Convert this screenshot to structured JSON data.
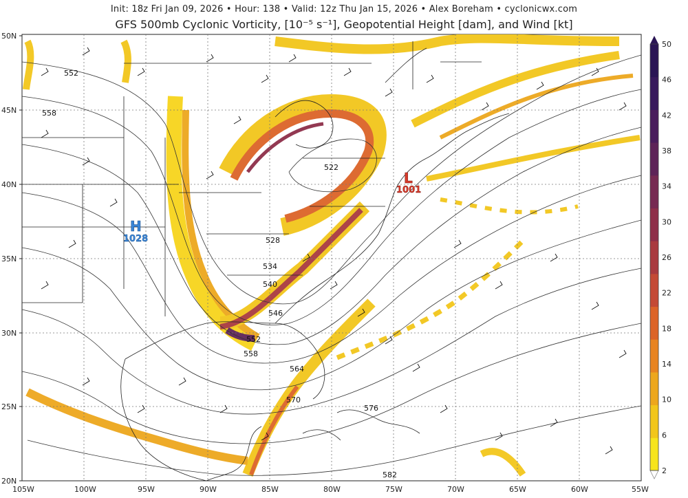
{
  "header": {
    "line1": "Init: 18z Fri Jan 09, 2026  •  Hour: 138  •  Valid: 12z Thu Jan 15, 2026  •  Alex Boreham  •  cyclonicwx.com",
    "line2": "GFS 500mb Cyclonic Vorticity, [10⁻⁵ s⁻¹], Geopotential Height [dam], and Wind [kt]"
  },
  "lat_labels": [
    "50N",
    "45N",
    "40N",
    "35N",
    "30N",
    "25N",
    "20N"
  ],
  "lon_labels": [
    "105W",
    "100W",
    "95W",
    "90W",
    "85W",
    "80W",
    "75W",
    "70W",
    "65W",
    "60W",
    "55W"
  ],
  "height_contour_labels": [
    "552",
    "558",
    "522",
    "528",
    "534",
    "540",
    "546",
    "552",
    "558",
    "564",
    "570",
    "576",
    "582"
  ],
  "pressure_centers": [
    {
      "type": "H",
      "value": "1028",
      "color": "#3a86d8"
    },
    {
      "type": "L",
      "value": "1001",
      "color": "#d83a2a"
    }
  ],
  "colorbar": {
    "labels": [
      "50",
      "46",
      "42",
      "38",
      "34",
      "30",
      "26",
      "22",
      "18",
      "14",
      "10",
      "6",
      "2"
    ],
    "colors": [
      "#f7e41c",
      "#f2c61b",
      "#eda71d",
      "#e88421",
      "#dc6428",
      "#c44a35",
      "#a93a3f",
      "#8e2f49",
      "#762a52",
      "#5e2458",
      "#4a1e5c",
      "#381a5c",
      "#2a1554"
    ]
  }
}
